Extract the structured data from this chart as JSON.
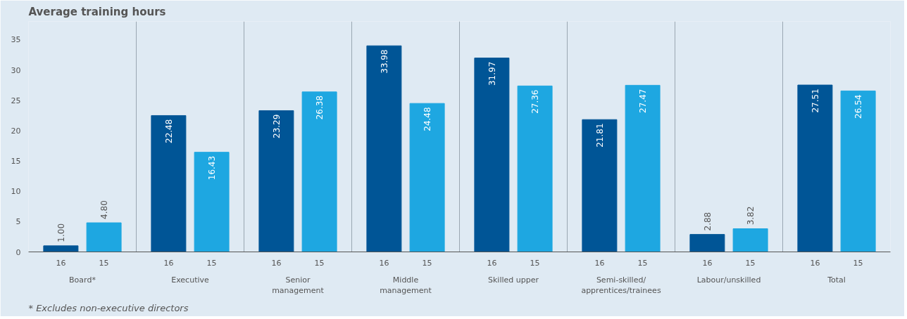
{
  "chart_data": {
    "type": "bar",
    "title": "Average training hours",
    "categories": [
      "Board*",
      "Executive",
      "Senior\nmanagement",
      "Middle\nmanagement",
      "Skilled upper",
      "Semi-skilled/\napprentices/trainees",
      "Labour/unskilled",
      "Total"
    ],
    "series": [
      {
        "name": "16",
        "color": "#005596",
        "values": [
          1.0,
          22.48,
          23.29,
          33.98,
          31.97,
          21.81,
          2.88,
          27.51
        ],
        "value_labels": [
          "1.00",
          "22.48",
          "23.29",
          "33.98",
          "31.97",
          "21.81",
          "2.88",
          "27.51"
        ]
      },
      {
        "name": "15",
        "color": "#1ea7e1",
        "values": [
          4.8,
          16.43,
          26.38,
          24.48,
          27.36,
          27.47,
          3.82,
          26.54
        ],
        "value_labels": [
          "4.80",
          "16.43",
          "26.38",
          "24.48",
          "27.36",
          "27.47",
          "3.82",
          "26.54"
        ]
      }
    ],
    "ylim": [
      0,
      38
    ],
    "yticks": [
      0,
      5,
      10,
      15,
      20,
      25,
      30,
      35
    ],
    "grid": false,
    "legend": false,
    "annotations": [
      "* Excludes non-executive directors"
    ]
  }
}
